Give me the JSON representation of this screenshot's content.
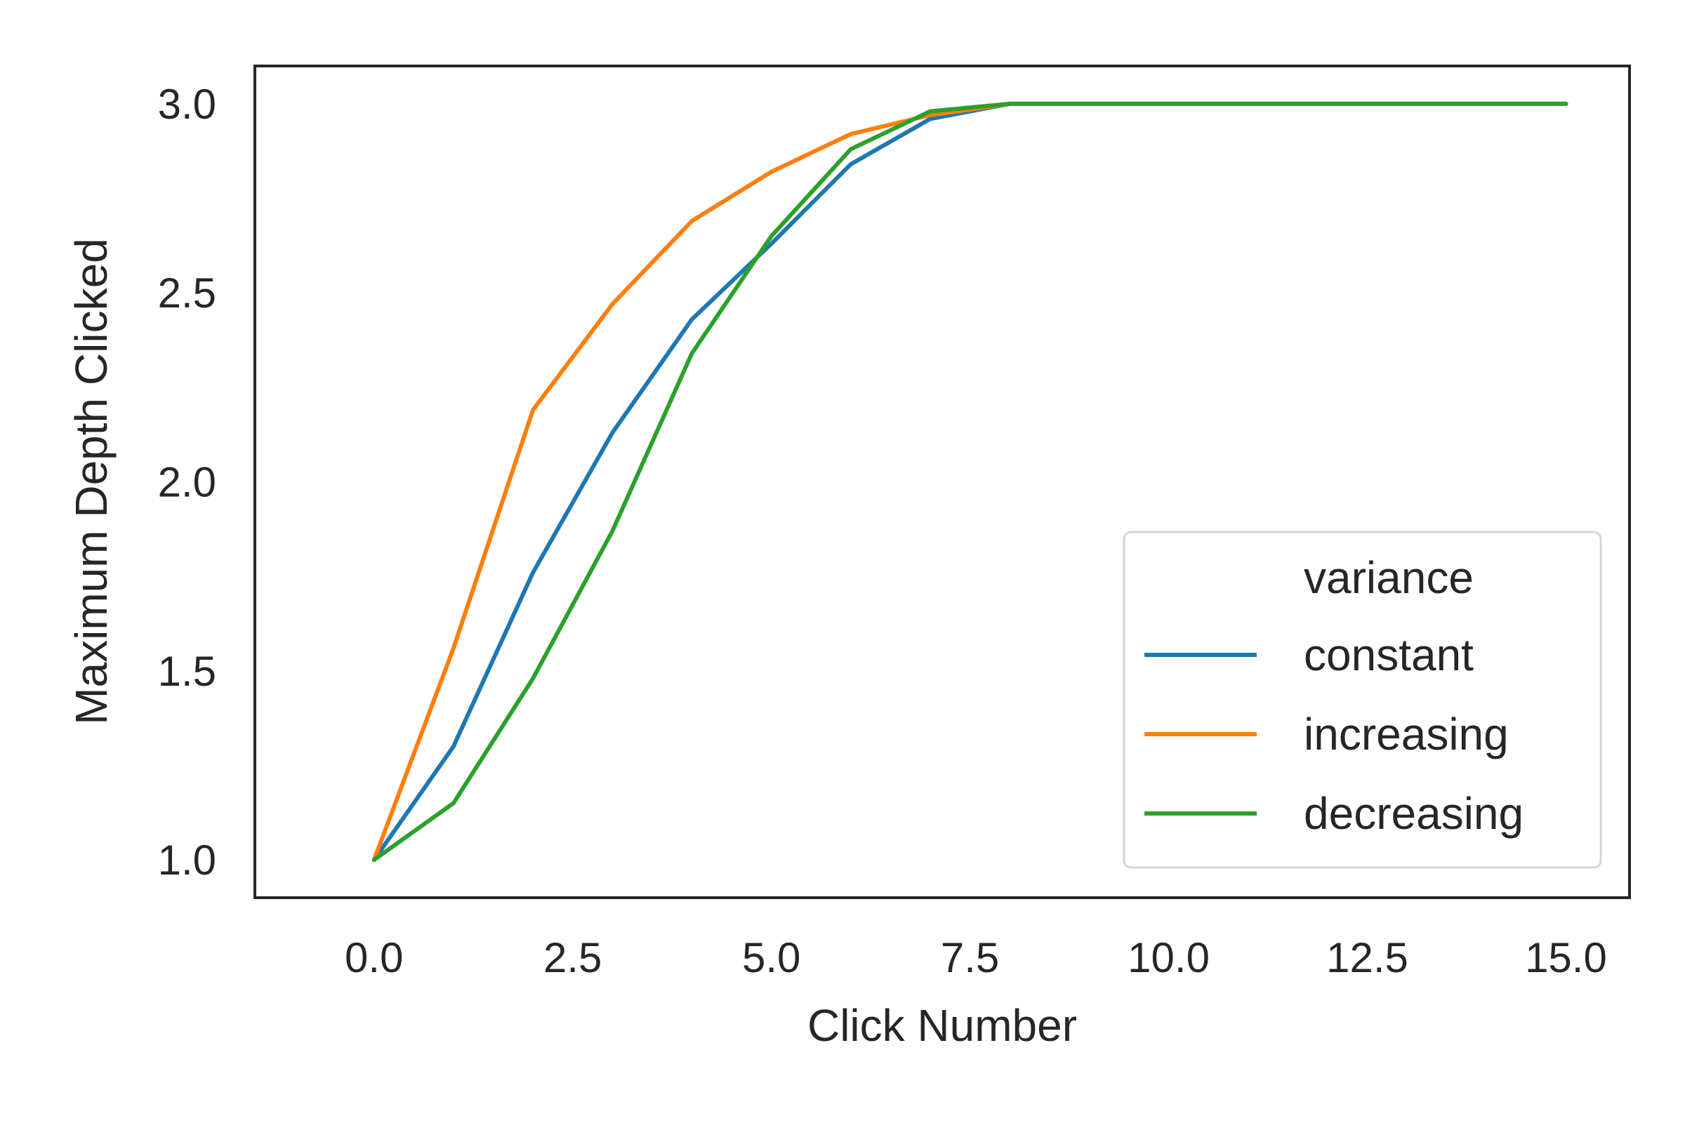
{
  "chart_data": {
    "type": "line",
    "title": "",
    "xlabel": "Click Number",
    "ylabel": "Maximum Depth Clicked",
    "xlim": [
      -1.5,
      15.8
    ],
    "ylim": [
      0.9,
      3.1
    ],
    "xticks": [
      0,
      2.5,
      5,
      7.5,
      10,
      12.5,
      15
    ],
    "xtick_labels": [
      "0.0",
      "2.5",
      "5.0",
      "7.5",
      "10.0",
      "12.5",
      "15.0"
    ],
    "yticks": [
      1.0,
      1.5,
      2.0,
      2.5,
      3.0
    ],
    "ytick_labels": [
      "1.0",
      "1.5",
      "2.0",
      "2.5",
      "3.0"
    ],
    "grid": false,
    "legend": {
      "title": "variance",
      "placement": "lower-right"
    },
    "x": [
      0,
      1,
      2,
      3,
      4,
      5,
      6,
      7,
      8,
      9,
      10,
      11,
      12,
      13,
      14,
      15
    ],
    "series": [
      {
        "name": "constant",
        "color": "#1f77b4",
        "values": [
          1.0,
          1.3,
          1.76,
          2.13,
          2.43,
          2.63,
          2.84,
          2.96,
          3.0,
          3.0,
          3.0,
          3.0,
          3.0,
          3.0,
          3.0,
          3.0
        ]
      },
      {
        "name": "increasing",
        "color": "#ff7f0e",
        "values": [
          1.0,
          1.56,
          2.19,
          2.47,
          2.69,
          2.82,
          2.92,
          2.97,
          3.0,
          3.0,
          3.0,
          3.0,
          3.0,
          3.0,
          3.0,
          3.0
        ]
      },
      {
        "name": "decreasing",
        "color": "#2ca02c",
        "values": [
          1.0,
          1.15,
          1.48,
          1.87,
          2.34,
          2.65,
          2.88,
          2.98,
          3.0,
          3.0,
          3.0,
          3.0,
          3.0,
          3.0,
          3.0,
          3.0
        ]
      }
    ]
  }
}
